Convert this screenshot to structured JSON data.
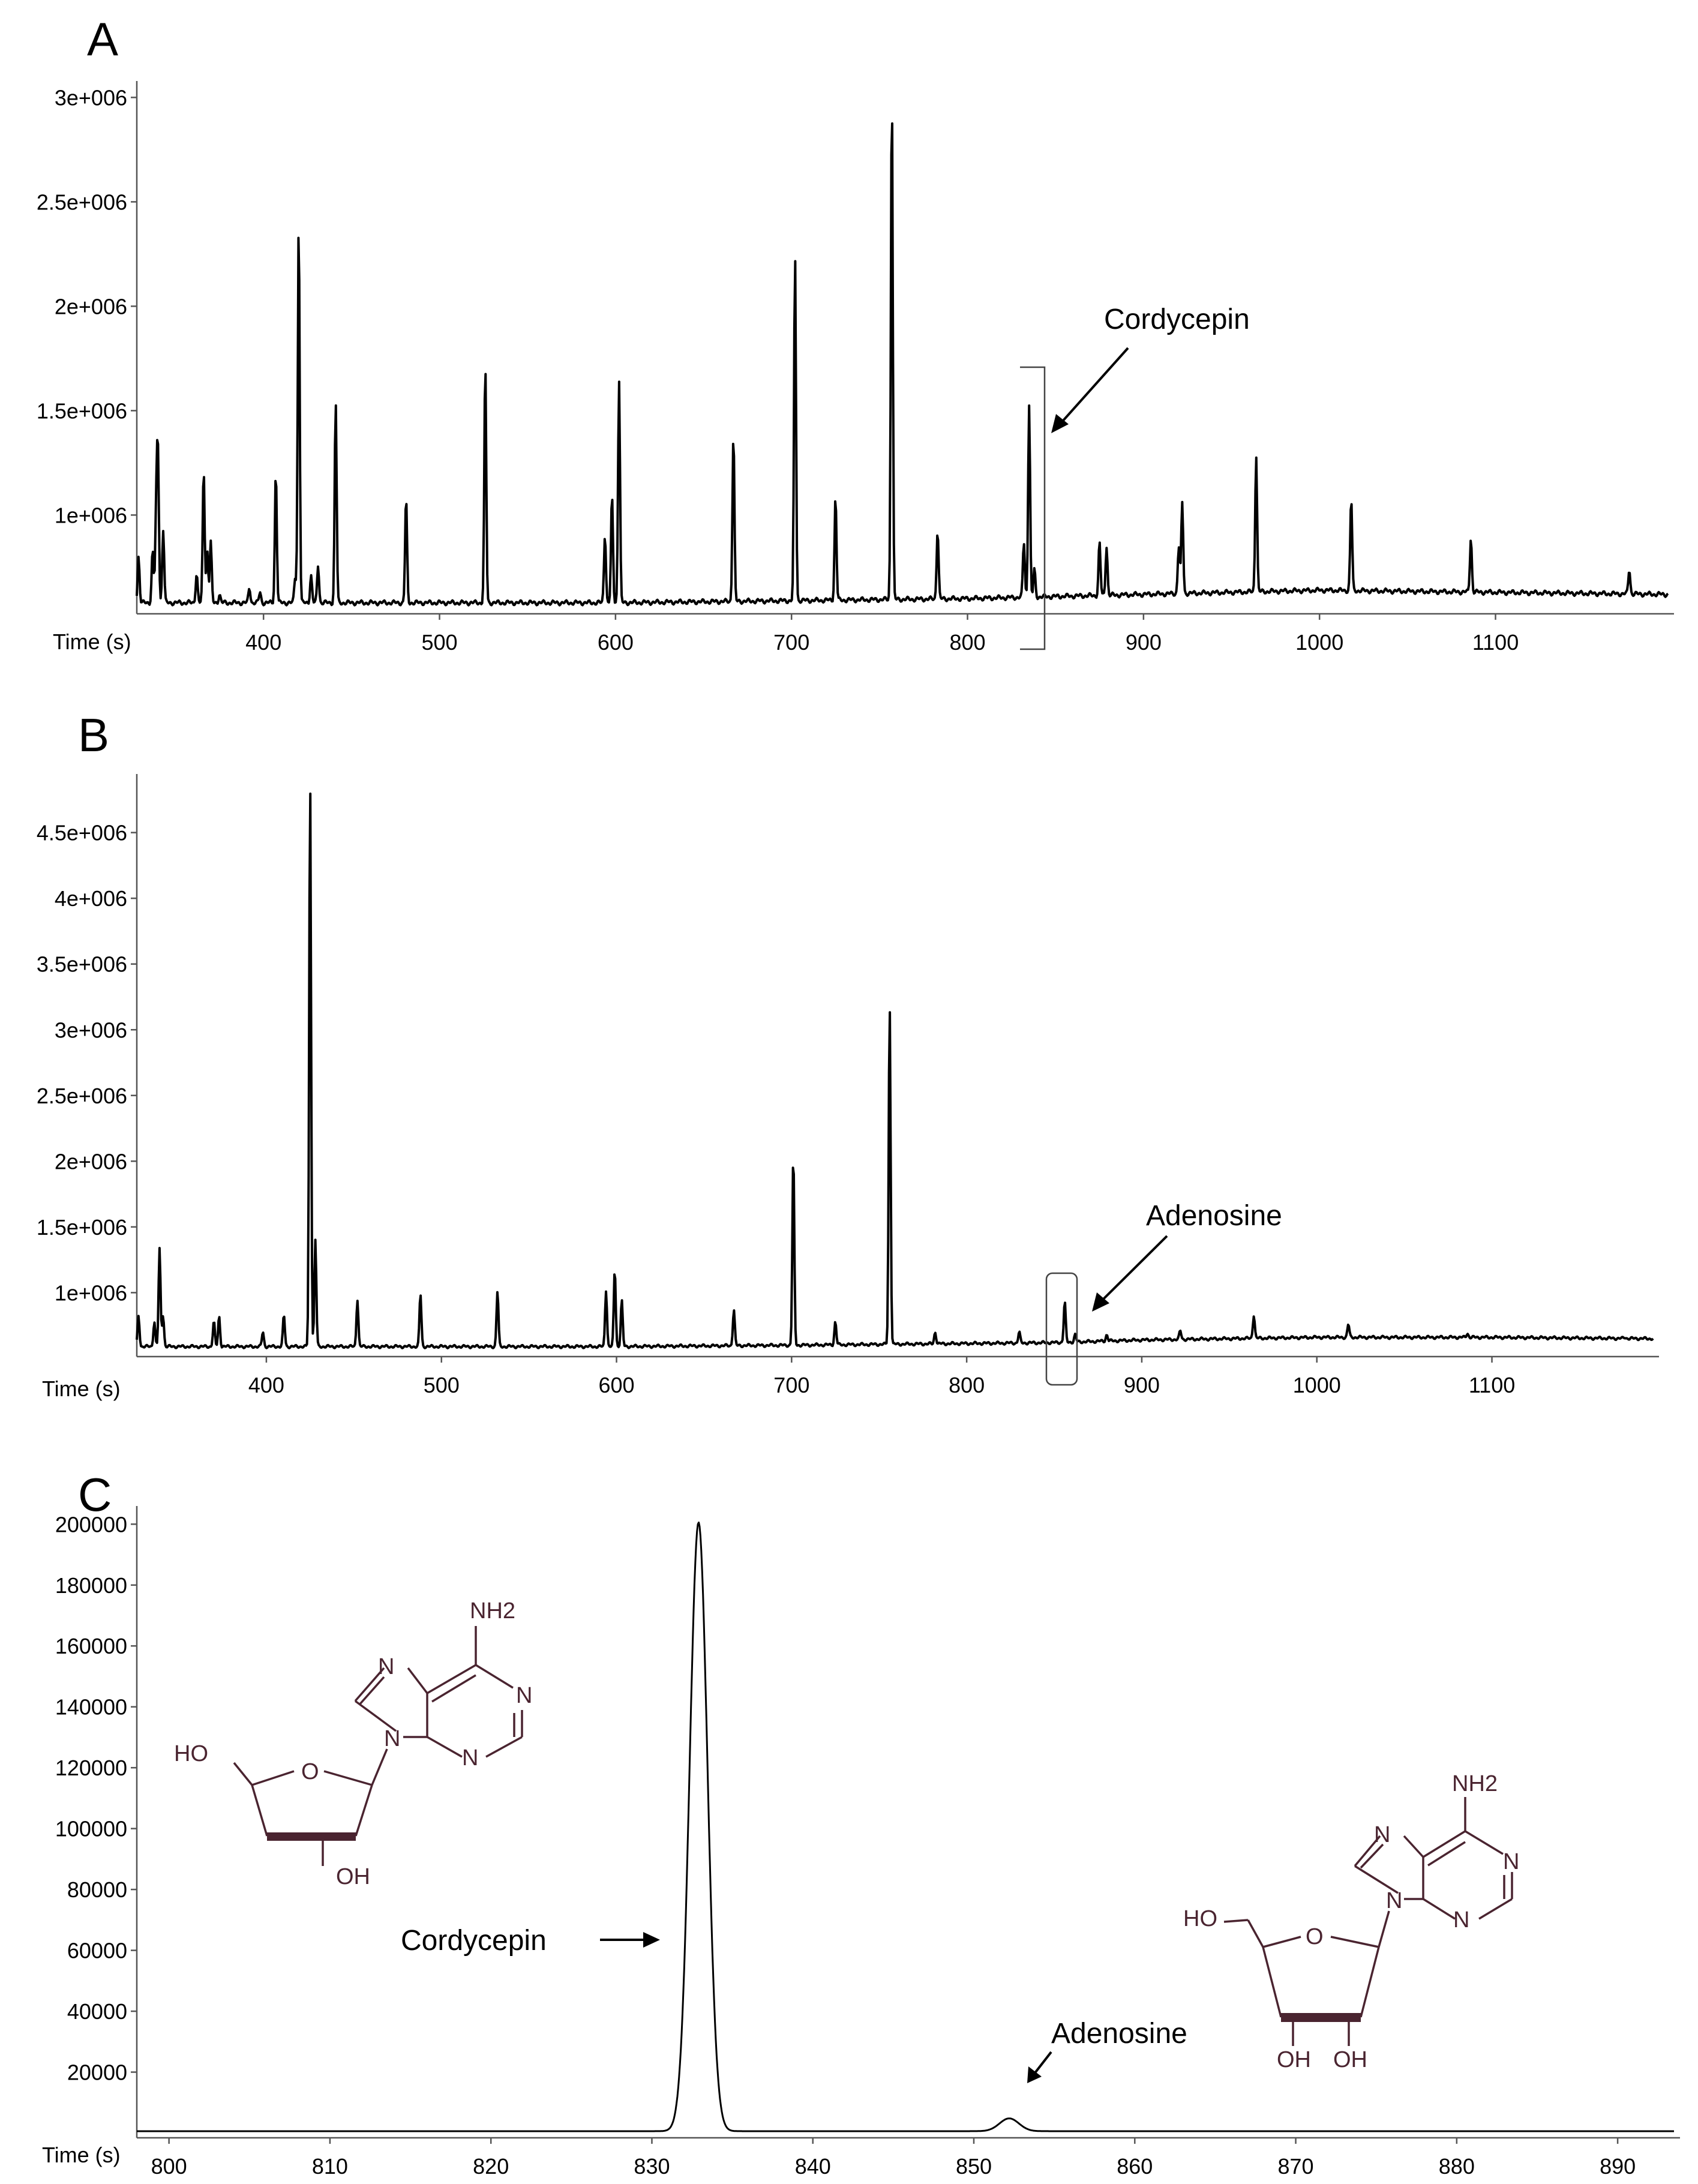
{
  "figure": {
    "panel_labels": [
      "A",
      "B",
      "C"
    ]
  },
  "colors": {
    "trace": "#000000",
    "structure": "#4a2430",
    "axis": "#333333"
  },
  "chart_data": [
    {
      "panel": "A",
      "type": "line",
      "xlabel": "Time (s)",
      "ylabel": "",
      "xlim": [
        328,
        1198
      ],
      "ylim": [
        550000,
        3050000
      ],
      "xticks": [
        400,
        500,
        600,
        700,
        800,
        900,
        1000,
        1100
      ],
      "xtick_labels": [
        "400",
        "500",
        "600",
        "700",
        "800",
        "900",
        "1000",
        "1100"
      ],
      "yticks": [
        1000000,
        1500000,
        2000000,
        2500000,
        3000000
      ],
      "ytick_labels": [
        "1e+006",
        "1.5e+006",
        "2e+006",
        "2.5e+006",
        "3e+006"
      ],
      "baseline": [
        [
          328,
          580000
        ],
        [
          600,
          580000
        ],
        [
          700,
          590000
        ],
        [
          800,
          600000
        ],
        [
          850,
          610000
        ],
        [
          900,
          620000
        ],
        [
          1000,
          640000
        ],
        [
          1100,
          630000
        ],
        [
          1198,
          620000
        ]
      ],
      "peaks": [
        [
          329,
          800000
        ],
        [
          337,
          830000
        ],
        [
          339,
          990000
        ],
        [
          340,
          1290000
        ],
        [
          343,
          930000
        ],
        [
          362,
          720000
        ],
        [
          366,
          1220000
        ],
        [
          368,
          830000
        ],
        [
          370,
          870000
        ],
        [
          375,
          620000
        ],
        [
          392,
          650000
        ],
        [
          398,
          630000
        ],
        [
          407,
          1210000
        ],
        [
          418,
          700000
        ],
        [
          420,
          2410000
        ],
        [
          427,
          710000
        ],
        [
          431,
          760000
        ],
        [
          441,
          1540000
        ],
        [
          481,
          1080000
        ],
        [
          526,
          1720000
        ],
        [
          594,
          910000
        ],
        [
          598,
          1090000
        ],
        [
          602,
          1650000
        ],
        [
          667,
          1390000
        ],
        [
          702,
          2240000
        ],
        [
          725,
          1090000
        ],
        [
          757,
          3040000
        ],
        [
          783,
          930000
        ],
        [
          832,
          870000
        ],
        [
          835,
          1530000
        ],
        [
          838,
          740000
        ],
        [
          875,
          870000
        ],
        [
          879,
          850000
        ],
        [
          920,
          850000
        ],
        [
          922,
          1060000
        ],
        [
          964,
          1290000
        ],
        [
          1018,
          1080000
        ],
        [
          1086,
          890000
        ],
        [
          1176,
          740000
        ]
      ],
      "annotations": [
        {
          "text": "Cordycepin",
          "x": 835
        }
      ]
    },
    {
      "panel": "B",
      "type": "line",
      "xlabel": "Time (s)",
      "ylabel": "",
      "xlim": [
        326,
        1192
      ],
      "ylim": [
        550000,
        4900000
      ],
      "xticks": [
        400,
        500,
        600,
        700,
        800,
        900,
        1000,
        1100
      ],
      "xtick_labels": [
        "400",
        "500",
        "600",
        "700",
        "800",
        "900",
        "1000",
        "1100"
      ],
      "yticks": [
        1000000,
        1500000,
        2000000,
        2500000,
        3000000,
        3500000,
        4000000,
        4500000
      ],
      "ytick_labels": [
        "1e+006",
        "1.5e+006",
        "2e+006",
        "2.5e+006",
        "3e+006",
        "3.5e+006",
        "4e+006",
        "4.5e+006"
      ],
      "baseline": [
        [
          326,
          590000
        ],
        [
          600,
          590000
        ],
        [
          700,
          600000
        ],
        [
          850,
          620000
        ],
        [
          900,
          640000
        ],
        [
          1000,
          660000
        ],
        [
          1100,
          660000
        ],
        [
          1192,
          650000
        ]
      ],
      "peaks": [
        [
          327,
          820000
        ],
        [
          336,
          780000
        ],
        [
          339,
          1330000
        ],
        [
          341,
          830000
        ],
        [
          370,
          780000
        ],
        [
          373,
          820000
        ],
        [
          398,
          700000
        ],
        [
          410,
          830000
        ],
        [
          425,
          4880000
        ],
        [
          428,
          1400000
        ],
        [
          452,
          950000
        ],
        [
          488,
          990000
        ],
        [
          532,
          1010000
        ],
        [
          594,
          1020000
        ],
        [
          599,
          1180000
        ],
        [
          603,
          940000
        ],
        [
          667,
          870000
        ],
        [
          701,
          2050000
        ],
        [
          725,
          780000
        ],
        [
          756,
          3190000
        ],
        [
          782,
          700000
        ],
        [
          830,
          700000
        ],
        [
          856,
          930000
        ],
        [
          862,
          680000
        ],
        [
          880,
          680000
        ],
        [
          922,
          710000
        ],
        [
          964,
          830000
        ],
        [
          1018,
          760000
        ],
        [
          1086,
          690000
        ],
        [
          1176,
          660000
        ]
      ],
      "annotations": [
        {
          "text": "Adenosine",
          "x": 856
        }
      ]
    },
    {
      "panel": "C",
      "type": "line",
      "xlabel": "Time (s)",
      "ylabel": "",
      "xlim": [
        798,
        893.5
      ],
      "ylim": [
        0,
        204000
      ],
      "xticks": [
        800,
        810,
        820,
        830,
        840,
        850,
        860,
        870,
        880,
        890
      ],
      "xtick_labels": [
        "800",
        "810",
        "820",
        "830",
        "840",
        "850",
        "860",
        "870",
        "880",
        "890"
      ],
      "yticks": [
        20000,
        40000,
        60000,
        80000,
        100000,
        120000,
        140000,
        160000,
        180000,
        200000
      ],
      "ytick_labels": [
        "20000",
        "40000",
        "60000",
        "80000",
        "100000",
        "120000",
        "140000",
        "160000",
        "180000",
        "200000"
      ],
      "peaks": [
        [
          832.9,
          200000
        ],
        [
          852.2,
          4200
        ]
      ],
      "annotations": [
        {
          "text": "Cordycepin",
          "x": 832.9
        },
        {
          "text": "Adenosine",
          "x": 852.2
        }
      ]
    }
  ],
  "structures": {
    "cordycepin": {
      "labels": [
        "NH2",
        "N",
        "N",
        "N",
        "N",
        "HO",
        "O",
        "OH"
      ]
    },
    "adenosine": {
      "labels": [
        "NH2",
        "N",
        "N",
        "N",
        "N",
        "HO",
        "O",
        "OH",
        "OH"
      ]
    }
  }
}
